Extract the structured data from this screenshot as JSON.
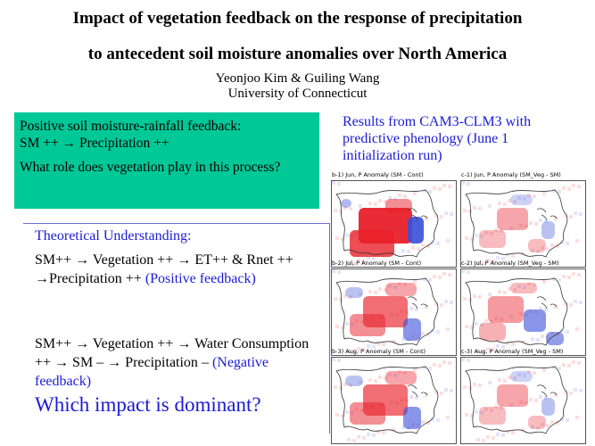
{
  "title": {
    "line1": "Impact of vegetation feedback on the response of precipitation",
    "line2": "to antecedent soil moisture anomalies over North America",
    "authors": "Yeonjoo Kim & Guiling Wang",
    "affiliation": "University of Connecticut"
  },
  "greenbox": {
    "line1": "Positive soil  moisture-rainfall feedback:",
    "line2": "SM ++ → Precipitation ++",
    "line3": "What role does vegetation play in this process?"
  },
  "theory": {
    "heading": "Theoretical Understanding:",
    "positive_chain": "SM++ → Vegetation ++ → ET++ & Rnet ++ →Precipitation ++ ",
    "positive_label": "(Positive feedback)",
    "negative_chain": "SM++ → Vegetation ++ → Water Consumption ++ → SM – → Precipitation – ",
    "negative_label": "(Negative feedback)",
    "question": "Which impact is dominant?"
  },
  "results": {
    "caption": "Results from CAM3-CLM3 with predictive phenology (June 1 initialization run)"
  },
  "panels": [
    {
      "label": "b-1) Jun, P Anomaly (SM - Cont)",
      "pattern": "strong"
    },
    {
      "label": "c-1) Jun, P Anomaly (SM_Veg - SM)",
      "pattern": "weak"
    },
    {
      "label": "b-2) Jul, P Anomaly (SM - Cont)",
      "pattern": "medium"
    },
    {
      "label": "c-2) Jul, P Anomaly (SM_Veg - SM)",
      "pattern": "mixed"
    },
    {
      "label": "b-3) Aug, P Anomaly (SM - Cont)",
      "pattern": "medium"
    },
    {
      "label": "c-3) Aug, P Anomaly (SM_Veg - SM)",
      "pattern": "weak"
    }
  ],
  "colors": {
    "green_box": "#00c896",
    "blue_text": "#1a1ad6",
    "anomaly_positive": "#e8202a",
    "anomaly_negative": "#3a4fd8"
  }
}
